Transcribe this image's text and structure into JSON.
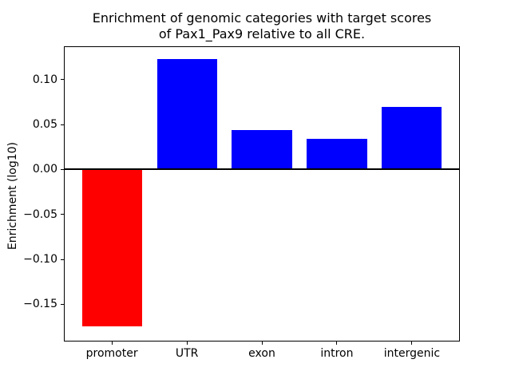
{
  "figure": {
    "title_line1": "Enrichment of genomic categories with target scores",
    "title_line2": "of Pax1_Pax9 relative to all CRE.",
    "ylabel": "Enrichment (log10)"
  },
  "colors": {
    "positive_bar": "#0000ff",
    "negative_bar": "#ff0000",
    "axis": "#000000",
    "background": "#ffffff"
  },
  "chart_data": {
    "type": "bar",
    "title": "Enrichment of genomic categories with target scores\nof Pax1_Pax9 relative to all CRE.",
    "xlabel": "",
    "ylabel": "Enrichment (log10)",
    "categories": [
      "promoter",
      "UTR",
      "exon",
      "intron",
      "intergenic"
    ],
    "values": [
      -0.175,
      0.123,
      0.044,
      0.034,
      0.07
    ],
    "bar_colors": [
      "#ff0000",
      "#0000ff",
      "#0000ff",
      "#0000ff",
      "#0000ff"
    ],
    "ytick_values": [
      0.1,
      0.05,
      0.0,
      -0.05,
      -0.1,
      -0.15
    ],
    "ytick_labels": [
      "0.10",
      "0.05",
      "0.00",
      "−0.05",
      "−0.10",
      "−0.15"
    ],
    "ylim": [
      -0.191,
      0.1375
    ],
    "xlim": [
      -0.64,
      4.64
    ],
    "bar_width": 0.8,
    "zero_line": true,
    "grid": false,
    "legend": false
  }
}
